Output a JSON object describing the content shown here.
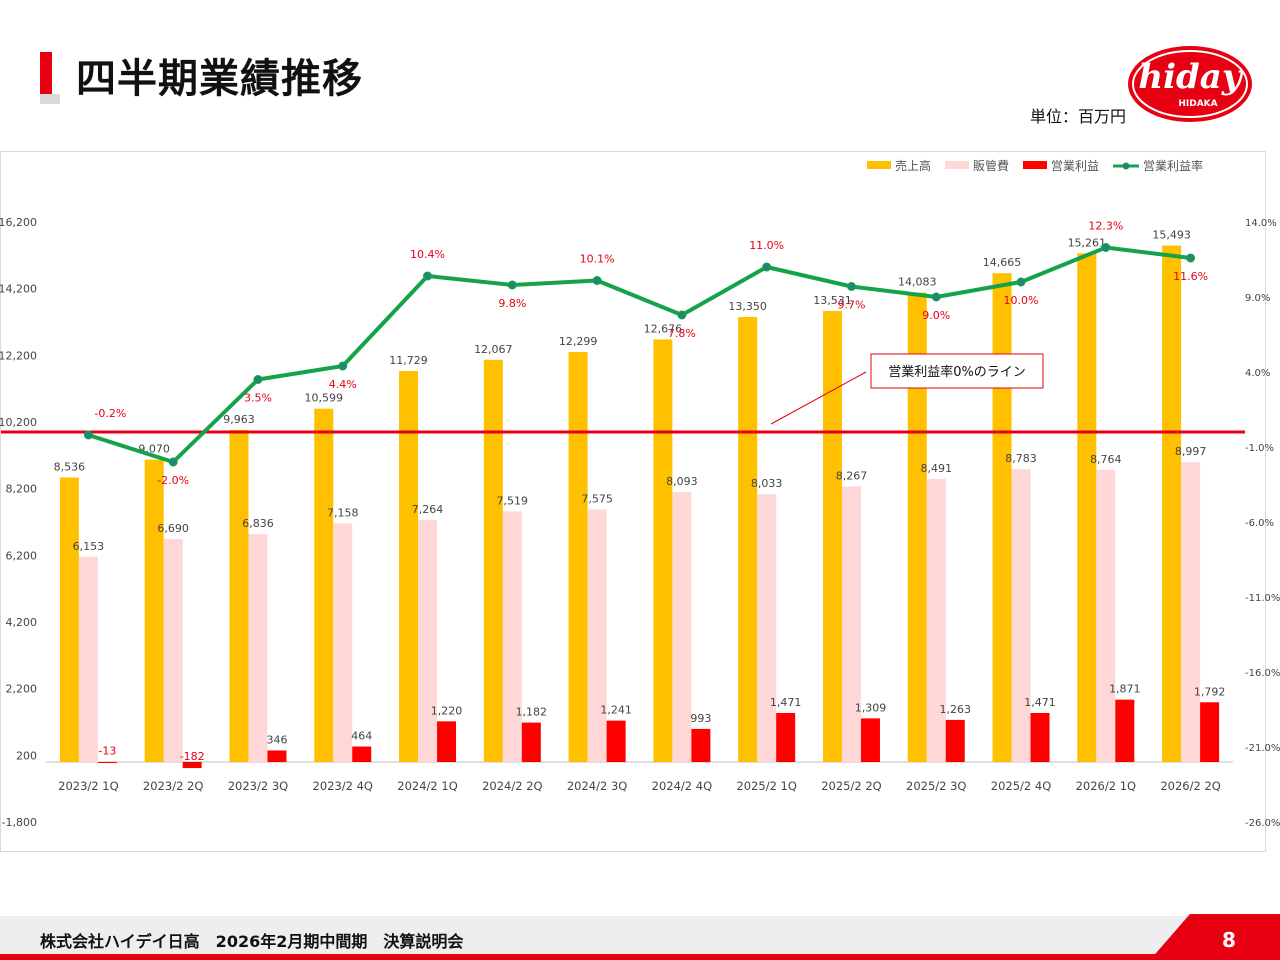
{
  "header": {
    "title": "四半期業績推移",
    "unit": "単位：百万円",
    "logo": {
      "text": "hiday",
      "subtext": "HIDAKA",
      "color": "#e60012"
    }
  },
  "footer": {
    "company": "株式会社ハイデイ日高　2026年2月期中間期　決算説明会",
    "page": "8"
  },
  "chart_data": {
    "type": "bar",
    "title": "",
    "xlabel": "",
    "ylabel": "",
    "categories": [
      "2023/2 1Q",
      "2023/2 2Q",
      "2023/2 3Q",
      "2023/2 4Q",
      "2024/2 1Q",
      "2024/2 2Q",
      "2024/2 3Q",
      "2024/2 4Q",
      "2025/2 1Q",
      "2025/2 2Q",
      "2025/2 3Q",
      "2025/2 4Q",
      "2026/2 1Q",
      "2026/2 2Q"
    ],
    "ylim": [
      -1800,
      16200
    ],
    "yticks": [
      -1800,
      200,
      2200,
      4200,
      6200,
      8200,
      10200,
      12200,
      14200,
      16200
    ],
    "ytick_labels": [
      "-1,800",
      "200",
      "2,200",
      "4,200",
      "6,200",
      "8,200",
      "10,200",
      "12,200",
      "14,200",
      "16,200"
    ],
    "y2lim": [
      -26.0,
      14.0
    ],
    "y2ticks": [
      -26.0,
      -21.0,
      -16.0,
      -11.0,
      -6.0,
      -1.0,
      4.0,
      9.0,
      14.0
    ],
    "y2tick_labels": [
      "-26.0%",
      "-21.0%",
      "-16.0%",
      "-11.0%",
      "-6.0%",
      "-1.0%",
      "4.0%",
      "9.0%",
      "14.0%"
    ],
    "legend": {
      "position": "top-right"
    },
    "series": [
      {
        "name": "売上高",
        "type": "bar",
        "color": "#ffc000",
        "values": [
          8536,
          9070,
          9963,
          10599,
          11729,
          12067,
          12299,
          12676,
          13350,
          13531,
          14083,
          14665,
          15261,
          15493
        ],
        "labels": [
          "8,536",
          "9,070",
          "9,963",
          "10,599",
          "11,729",
          "12,067",
          "12,299",
          "12,676",
          "13,350",
          "13,531",
          "14,083",
          "14,665",
          "15,261",
          "15,493"
        ]
      },
      {
        "name": "販管費",
        "type": "bar",
        "color": "#ffd7d7",
        "values": [
          6153,
          6690,
          6836,
          7158,
          7264,
          7519,
          7575,
          8093,
          8033,
          8267,
          8491,
          8783,
          8764,
          8997
        ],
        "labels": [
          "6,153",
          "6,690",
          "6,836",
          "7,158",
          "7,264",
          "7,519",
          "7,575",
          "8,093",
          "8,033",
          "8,267",
          "8,491",
          "8,783",
          "8,764",
          "8,997"
        ]
      },
      {
        "name": "営業利益",
        "type": "bar",
        "color": "#ff0000",
        "values": [
          -13,
          -182,
          346,
          464,
          1220,
          1182,
          1241,
          993,
          1471,
          1309,
          1263,
          1471,
          1871,
          1792
        ],
        "labels": [
          "-13",
          "-182",
          "346",
          "464",
          "1,220",
          "1,182",
          "1,241",
          "993",
          "1,471",
          "1,309",
          "1,263",
          "1,471",
          "1,871",
          "1,792"
        ]
      },
      {
        "name": "営業利益率",
        "type": "line",
        "color": "#15a34a",
        "axis": "right",
        "values": [
          -0.2,
          -2.0,
          3.5,
          4.4,
          10.4,
          9.8,
          10.1,
          7.8,
          11.0,
          9.7,
          9.0,
          10.0,
          12.3,
          11.6
        ],
        "labels": [
          "-0.2%",
          "-2.0%",
          "3.5%",
          "4.4%",
          "10.4%",
          "9.8%",
          "10.1%",
          "7.8%",
          "11.0%",
          "9.7%",
          "9.0%",
          "10.0%",
          "12.3%",
          "11.6%"
        ]
      }
    ],
    "reference_line": {
      "value": 0,
      "axis": "right",
      "color": "#e60012"
    },
    "annotation": {
      "text": "営業利益率0%のライン"
    }
  }
}
